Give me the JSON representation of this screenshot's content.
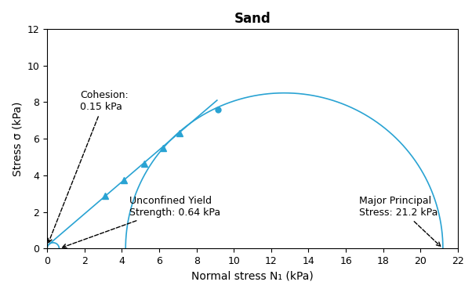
{
  "chart_data": {
    "type": "scatter",
    "title": "Sand",
    "x_label": "Normal stress N₁ (kPa)",
    "y_label": "Stress σ (kPa)",
    "xlim": [
      0,
      22
    ],
    "xticks": [
      0,
      2,
      4,
      6,
      8,
      10,
      12,
      14,
      16,
      18,
      20,
      22
    ],
    "ylim": [
      0,
      12
    ],
    "yticks": [
      0,
      2,
      4,
      6,
      8,
      10,
      12
    ],
    "grid": false,
    "color": "#29a3d3",
    "yield_locus": {
      "x": [
        0,
        9.1
      ],
      "values": [
        0.15,
        8.1
      ],
      "line_style": "solid"
    },
    "shear_points": {
      "x": [
        3.1,
        4.1,
        5.2,
        6.2,
        7.1
      ],
      "values": [
        2.9,
        3.75,
        4.65,
        5.5,
        6.3
      ],
      "marker": "triangle"
    },
    "end_point": {
      "x": [
        9.15
      ],
      "values": [
        7.6
      ],
      "marker": "circle"
    },
    "mohr_circles": [
      {
        "sigma_min": 0,
        "sigma_max": 0.64
      },
      {
        "sigma_min": 4.2,
        "sigma_max": 21.2
      }
    ],
    "annotations": [
      {
        "text": "Cohesion:\n0.15 kPa",
        "x": 0,
        "y": 0.15
      },
      {
        "text": "Unconfined Yield\nStrength: 0.64 kPa",
        "x": 0.64,
        "y": 0
      },
      {
        "text": "Major Principal\nStress: 21.2 kPa",
        "x": 21.2,
        "y": 0
      }
    ]
  }
}
